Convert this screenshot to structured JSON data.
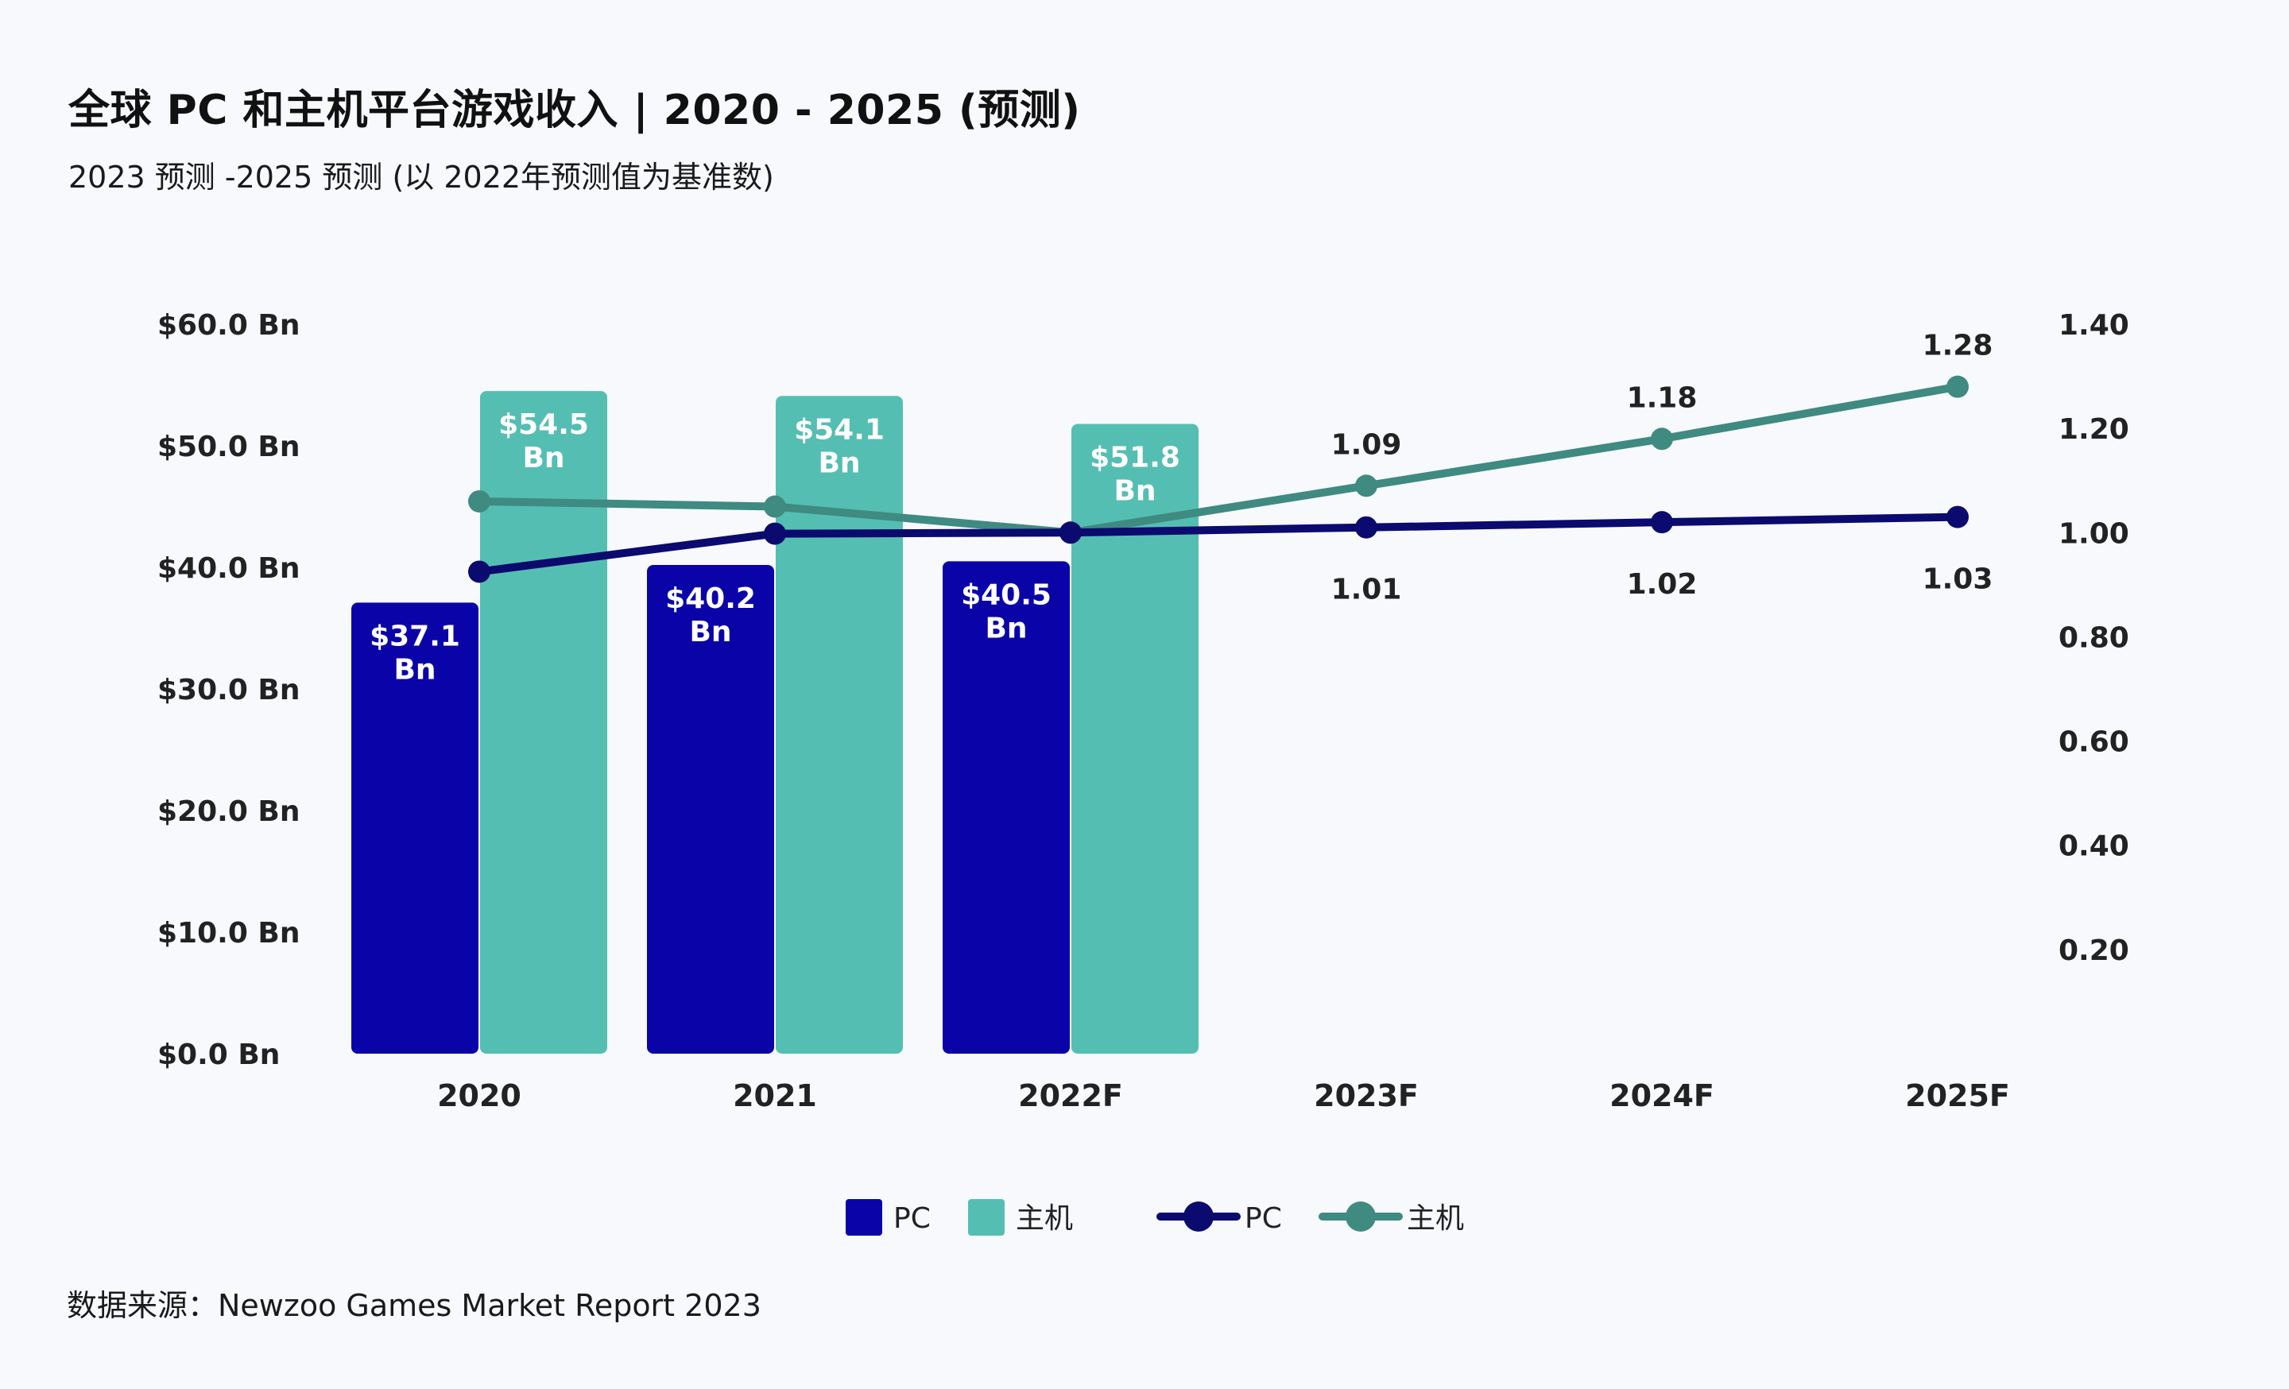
{
  "title": "全球 PC 和主机平台游戏收入 | 2020 - 2025 (预测)",
  "subtitle": "2023 预测 -2025 预测 (以 2022年预测值为基准数)",
  "source": "数据来源：Newzoo Games Market Report 2023",
  "colors": {
    "pc_bar": "#0a04a8",
    "console_bar": "#55beb3",
    "pc_line": "#0b0a6e",
    "console_line": "#3f8a81"
  },
  "chart_data": {
    "type": "bar",
    "categories": [
      "2020",
      "2021",
      "2022F",
      "2023F",
      "2024F",
      "2025F"
    ],
    "left_axis": {
      "ylim": [
        0,
        60
      ],
      "ticks": [
        0,
        10,
        20,
        30,
        40,
        50,
        60
      ],
      "tick_labels": [
        "$0.0 Bn",
        "$10.0 Bn",
        "$20.0 Bn",
        "$30.0 Bn",
        "$40.0 Bn",
        "$50.0 Bn",
        "$60.0 Bn"
      ]
    },
    "right_axis": {
      "ylim": [
        0,
        1.4
      ],
      "ticks": [
        0.2,
        0.4,
        0.6,
        0.8,
        1.0,
        1.2,
        1.4
      ],
      "tick_labels": [
        "0.20",
        "0.40",
        "0.60",
        "0.80",
        "1.00",
        "1.20",
        "1.40"
      ]
    },
    "bar_series": [
      {
        "name": "PC",
        "values": [
          37.1,
          40.2,
          40.5
        ],
        "labels": [
          "$37.1",
          "$40.2",
          "$40.5"
        ],
        "unit": "Bn"
      },
      {
        "name": "主机",
        "values": [
          54.5,
          54.1,
          51.8
        ],
        "labels": [
          "$54.5",
          "$54.1",
          "$51.8"
        ],
        "unit": "Bn"
      }
    ],
    "line_series": [
      {
        "name": "PC",
        "values": [
          0.925,
          0.998,
          1.0,
          1.01,
          1.02,
          1.03
        ],
        "labels": [
          "",
          "",
          "",
          "1.01",
          "1.02",
          "1.03"
        ]
      },
      {
        "name": "主机",
        "values": [
          1.06,
          1.05,
          1.0,
          1.09,
          1.18,
          1.28
        ],
        "labels": [
          "",
          "",
          "",
          "1.09",
          "1.18",
          "1.28"
        ]
      }
    ],
    "legend": [
      {
        "label": "PC",
        "kind": "bar"
      },
      {
        "label": "主机",
        "kind": "bar"
      },
      {
        "label": "PC",
        "kind": "line"
      },
      {
        "label": "主机",
        "kind": "line"
      }
    ],
    "grid": false,
    "legend_position": "bottom"
  }
}
